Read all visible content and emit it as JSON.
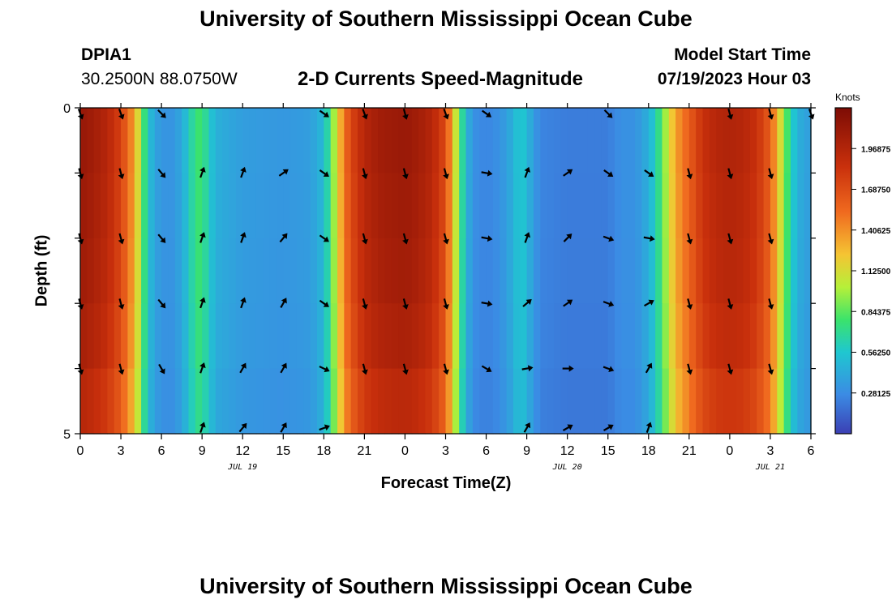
{
  "page": {
    "title_top": "University of Southern Mississippi Ocean Cube",
    "title_bottom": "University of Southern Mississippi Ocean Cube",
    "station": "DPIA1",
    "coords": "30.2500N  88.0750W",
    "chart_title": "2-D Currents Speed-Magnitude",
    "model_start_label": "Model Start Time",
    "model_start_value": "07/19/2023 Hour 03",
    "colorbar_label": "Knots"
  },
  "chart_data": {
    "type": "heatmap",
    "title": "2-D Currents Speed-Magnitude",
    "xlabel": "Forecast Time(Z)",
    "ylabel": "Depth (ft)",
    "x_range": [
      0,
      54
    ],
    "y_range": [
      0,
      5
    ],
    "x_tick_labels": [
      "0",
      "3",
      "6",
      "9",
      "12",
      "15",
      "18",
      "21",
      "0",
      "3",
      "6",
      "9",
      "12",
      "15",
      "18",
      "21",
      "0",
      "3",
      "6"
    ],
    "y_tick_labels": [
      "0",
      "5"
    ],
    "day_labels": [
      {
        "label": "JUL 19",
        "hour": 12
      },
      {
        "label": "JUL 20",
        "hour": 36
      },
      {
        "label": "JUL 21",
        "hour": 51
      }
    ],
    "colorbar": {
      "label": "Knots",
      "range": [
        0,
        2.25
      ],
      "tick_labels": [
        "1.96875",
        "1.68750",
        "1.40625",
        "1.12500",
        "0.84375",
        "0.56250",
        "0.28125"
      ],
      "tick_values": [
        1.96875,
        1.6875,
        1.40625,
        1.125,
        0.84375,
        0.5625,
        0.28125
      ]
    },
    "speed_profile_hours": [
      0,
      1,
      2,
      3,
      4,
      4.5,
      5,
      5.5,
      6,
      7,
      8,
      8.5,
      9,
      9.5,
      10,
      12,
      15,
      17,
      18,
      18.5,
      19,
      19.5,
      20,
      21,
      22,
      23,
      24,
      25,
      26,
      27,
      27.5,
      28,
      28.5,
      29,
      30,
      31,
      32,
      32.5,
      33,
      33.5,
      34,
      36,
      39,
      40,
      41,
      42,
      42.5,
      43,
      43.5,
      44,
      45,
      46,
      47,
      48,
      49,
      50,
      51,
      51.5,
      52,
      52.5,
      53,
      54
    ],
    "speed_profile_knots": [
      2.12,
      2.05,
      1.95,
      1.75,
      1.35,
      0.95,
      0.55,
      0.4,
      0.32,
      0.32,
      0.55,
      0.78,
      0.78,
      0.6,
      0.45,
      0.36,
      0.33,
      0.36,
      0.5,
      0.8,
      1.15,
      1.5,
      1.72,
      1.95,
      2.05,
      2.08,
      2.1,
      2.05,
      1.95,
      1.7,
      1.3,
      0.85,
      0.5,
      0.3,
      0.25,
      0.3,
      0.45,
      0.6,
      0.5,
      0.35,
      0.25,
      0.22,
      0.22,
      0.3,
      0.3,
      0.45,
      0.6,
      0.85,
      1.1,
      1.35,
      1.6,
      1.85,
      1.95,
      1.98,
      1.95,
      1.85,
      1.6,
      1.3,
      0.95,
      0.65,
      0.45,
      0.35
    ],
    "depth_factors": [
      1.0,
      0.99,
      0.98,
      0.96,
      0.92,
      0.85
    ],
    "arrow_hours": [
      0,
      3,
      6,
      9,
      12,
      15,
      18,
      21,
      24,
      27,
      30,
      33,
      36,
      39,
      42,
      45,
      48,
      51,
      54
    ],
    "arrow_depths": [
      0,
      1,
      2,
      3,
      4,
      5
    ],
    "arrow_directions_deg": [
      [
        160,
        160,
        135,
        null,
        null,
        null,
        125,
        160,
        165,
        160,
        125,
        null,
        null,
        135,
        null,
        null,
        165,
        165,
        160
      ],
      [
        165,
        165,
        140,
        20,
        20,
        55,
        125,
        165,
        165,
        165,
        100,
        20,
        55,
        125,
        125,
        165,
        165,
        165,
        null
      ],
      [
        165,
        165,
        140,
        20,
        20,
        40,
        125,
        165,
        165,
        165,
        100,
        20,
        45,
        110,
        100,
        165,
        165,
        165,
        null
      ],
      [
        165,
        165,
        140,
        20,
        20,
        30,
        125,
        165,
        165,
        165,
        100,
        50,
        55,
        110,
        60,
        165,
        165,
        165,
        null
      ],
      [
        165,
        165,
        150,
        20,
        30,
        30,
        115,
        165,
        165,
        165,
        120,
        80,
        90,
        110,
        30,
        165,
        165,
        165,
        null
      ],
      [
        null,
        null,
        null,
        20,
        40,
        30,
        70,
        null,
        null,
        null,
        null,
        30,
        60,
        60,
        20,
        null,
        null,
        null,
        null
      ]
    ]
  }
}
